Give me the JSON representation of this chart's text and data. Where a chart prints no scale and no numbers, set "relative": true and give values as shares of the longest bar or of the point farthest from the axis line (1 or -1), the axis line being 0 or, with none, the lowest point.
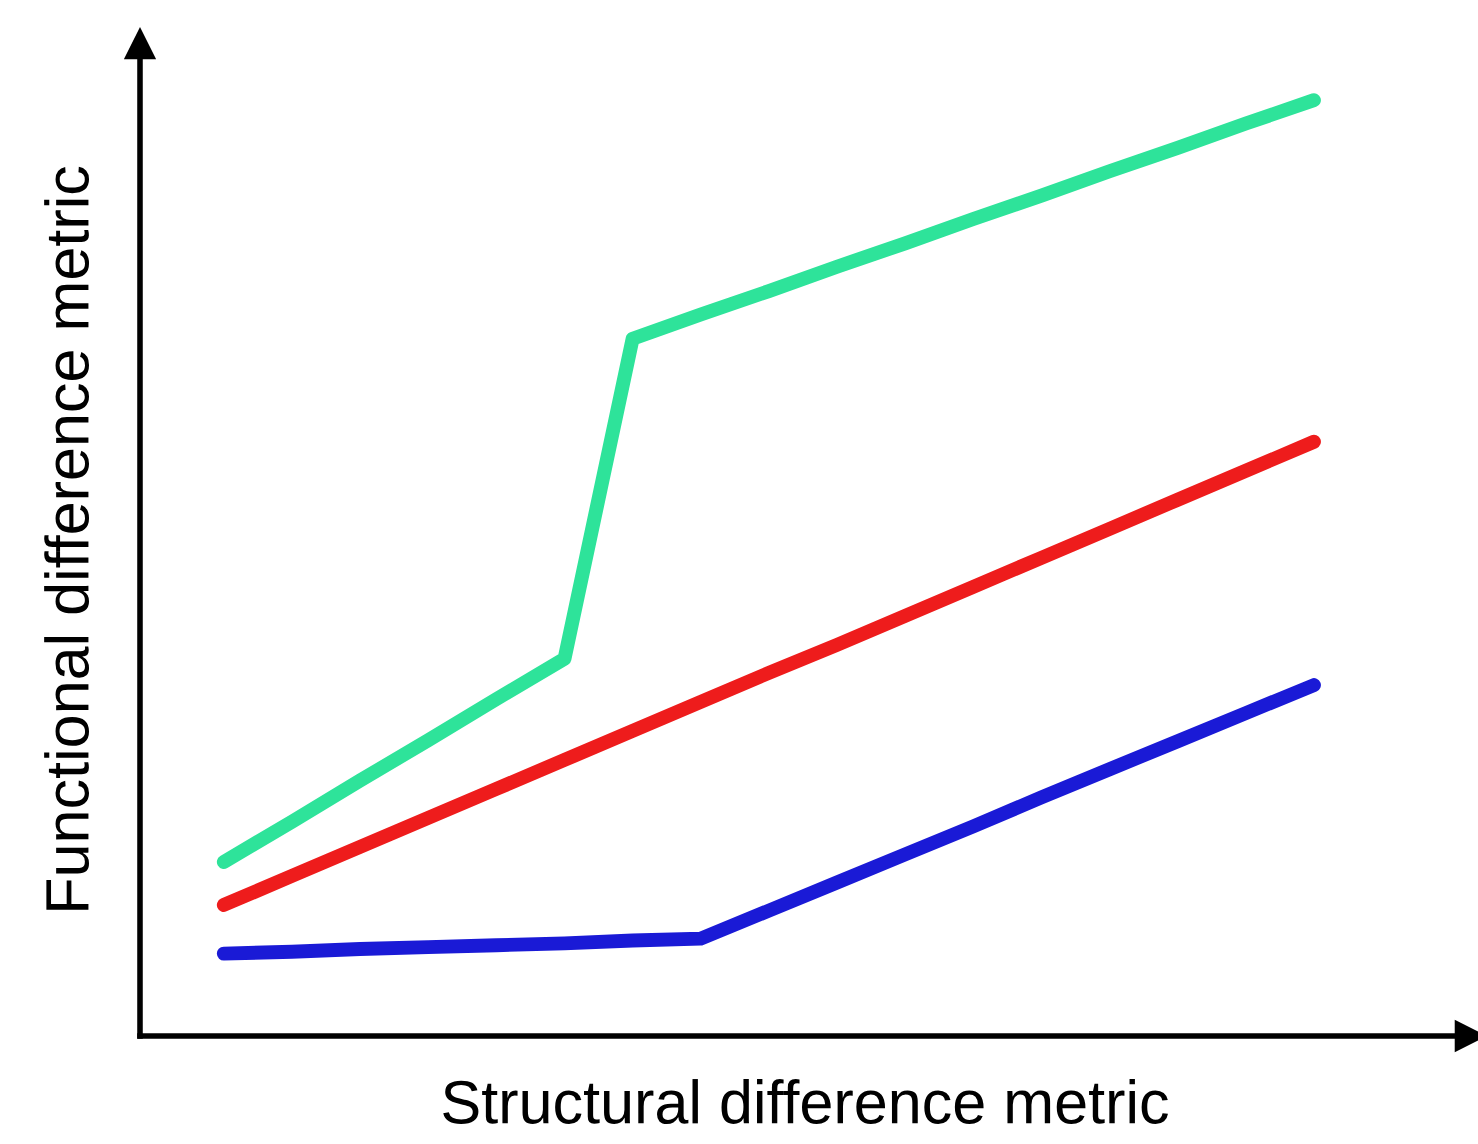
{
  "chart_data": {
    "type": "line",
    "relative": true,
    "xlabel": "Structural difference metric",
    "ylabel": "Functional difference metric",
    "marker": "none",
    "line_style": "solid",
    "legend": false,
    "categories": [
      null,
      null,
      null,
      null,
      null,
      null,
      null,
      null,
      null,
      null,
      null,
      null,
      null,
      null,
      null,
      null,
      null
    ],
    "series": [
      {
        "color": "#2ee39a",
        "values": [
          0.186,
          0.229,
          0.273,
          0.316,
          0.36,
          0.403,
          0.745,
          0.771,
          0.796,
          0.822,
          0.847,
          0.873,
          0.898,
          0.924,
          0.949,
          0.975,
          1.0
        ]
      },
      {
        "color": "#ee1c1c",
        "values": [
          0.14,
          0.171,
          0.202,
          0.233,
          0.264,
          0.295,
          0.326,
          0.357,
          0.388,
          0.418,
          0.449,
          0.48,
          0.511,
          0.542,
          0.573,
          0.604,
          0.635
        ]
      },
      {
        "color": "#1a1ad6",
        "values": [
          0.088,
          0.09,
          0.093,
          0.095,
          0.097,
          0.099,
          0.102,
          0.104,
          0.134,
          0.164,
          0.194,
          0.224,
          0.255,
          0.285,
          0.315,
          0.345,
          0.375
        ]
      }
    ]
  }
}
